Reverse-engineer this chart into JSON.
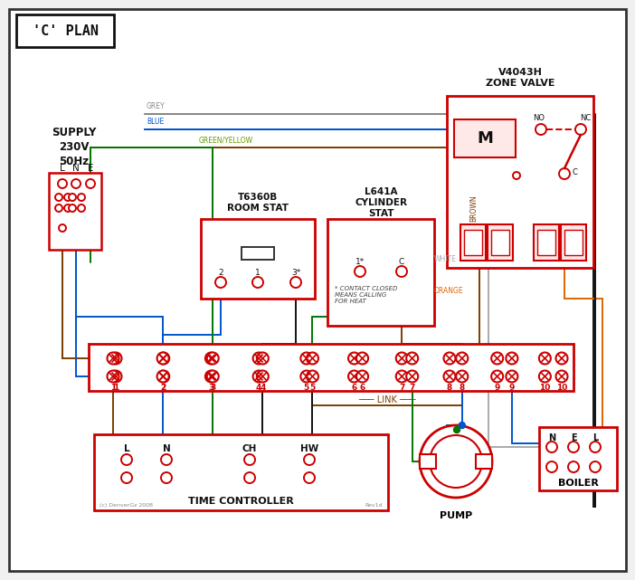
{
  "title": "'C' PLAN",
  "red": "#cc0000",
  "wire_grey": "#888888",
  "wire_blue": "#0055cc",
  "wire_green": "#007700",
  "wire_brown": "#7B3F00",
  "wire_black": "#111111",
  "wire_orange": "#dd6600",
  "wire_white": "#aaaaaa",
  "wire_gy": "#669900",
  "zone_valve_title": "V4043H\nZONE VALVE",
  "room_stat_title": "T6360B\nROOM STAT",
  "cyl_stat_title": "L641A\nCYLINDER\nSTAT",
  "supply_text": "SUPPLY\n230V\n50Hz",
  "time_ctrl_text": "TIME CONTROLLER",
  "pump_text": "PUMP",
  "boiler_text": "BOILER",
  "link_text": "LINK",
  "contact_note": "* CONTACT CLOSED\nMEANS CALLING\nFOR HEAT",
  "copyright": "(c) DenverGz 2008",
  "rev": "Rev1d"
}
